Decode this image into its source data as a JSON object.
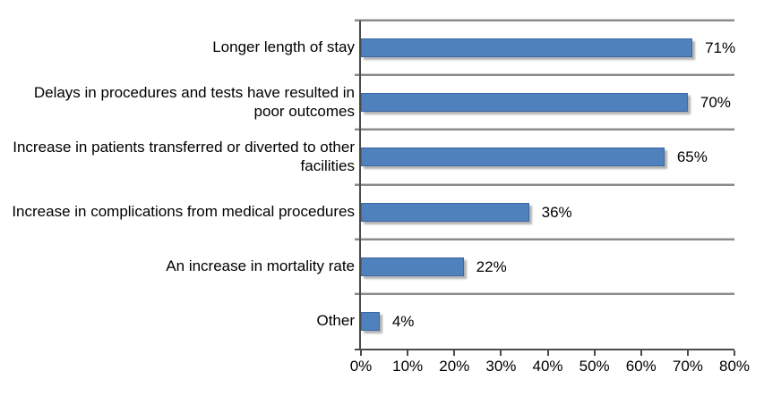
{
  "chart_data": {
    "type": "bar",
    "orientation": "horizontal",
    "title": "",
    "xlabel": "",
    "ylabel": "",
    "categories": [
      "Longer length of stay",
      "Delays in procedures and tests have resulted in poor outcomes",
      "Increase in patients transferred or diverted to other facilities",
      "Increase in complications from medical procedures",
      "An increase in mortality rate",
      "Other"
    ],
    "values": [
      71,
      70,
      65,
      36,
      22,
      4
    ],
    "value_labels": [
      "71%",
      "70%",
      "65%",
      "36%",
      "22%",
      "4%"
    ],
    "xlim": [
      0,
      80
    ],
    "x_tick_values": [
      0,
      10,
      20,
      30,
      40,
      50,
      60,
      70,
      80
    ],
    "x_tick_labels": [
      "0%",
      "10%",
      "20%",
      "30%",
      "40%",
      "50%",
      "60%",
      "70%",
      "80%"
    ],
    "legend": "none",
    "grid": "horizontal category separators, no vertical gridlines, no right plot border",
    "colors": {
      "bar_fill": "#4F81BD",
      "bar_border": "#3A68A4",
      "bar_shadow": "#B3B3B3",
      "separator_line": "#8A8A8A",
      "axis_line": "#4A4A4A",
      "text": "#000000",
      "background": "#FFFFFF"
    }
  }
}
